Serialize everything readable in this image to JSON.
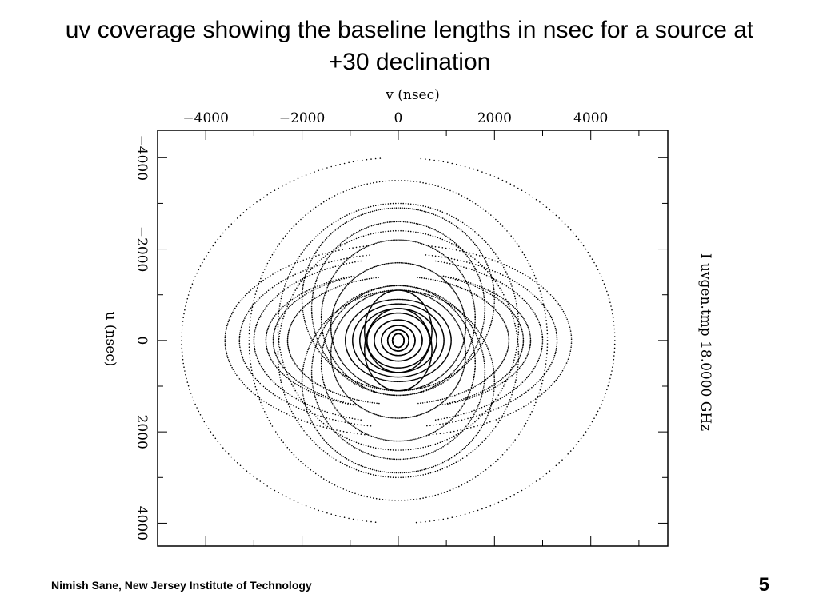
{
  "slide": {
    "title_line1": "uv coverage showing the baseline lengths in nsec for a source at",
    "title_line2": "+30 declination",
    "footer": "Nimish Sane,  New Jersey Institute of Technology",
    "page_number": "5"
  },
  "chart_data": {
    "type": "scatter",
    "xlabel": "v (nsec)",
    "ylabel": "u (nsec)",
    "side_label": "I uvgen.tmp 18.0000 GHz",
    "xlim": [
      -5000,
      5600
    ],
    "ylim": [
      -4600,
      4500
    ],
    "x_ticks": [
      -4000,
      -2000,
      0,
      2000,
      4000
    ],
    "x_tick_labels": [
      "−4000",
      "−2000",
      "0",
      "2000",
      "4000"
    ],
    "y_ticks": [
      -4000,
      -2000,
      0,
      2000,
      4000
    ],
    "y_tick_labels": [
      "−4000",
      "−2000",
      "0",
      "2000",
      "4000"
    ],
    "grid": false,
    "marker_color": "#000000",
    "note": "Each track is an elliptical arc centered at (0, ±center_y) with semi-axes a (along v) and b (along u); arcs span angle range start_deg..end_deg with a point every step_deg.",
    "tracks": [
      {
        "a": 4500,
        "b": 4000,
        "center_y": 0,
        "start_deg": 96,
        "end_deg": 266
      },
      {
        "a": 4500,
        "b": 4000,
        "center_y": 0,
        "start_deg": 276,
        "end_deg": 446
      },
      {
        "a": 3100,
        "b": 3500,
        "center_y": 0,
        "start_deg": 0,
        "end_deg": 360
      },
      {
        "a": 2500,
        "b": 2700,
        "center_y": 300,
        "start_deg": 0,
        "end_deg": 360
      },
      {
        "a": 2500,
        "b": 2700,
        "center_y": -300,
        "start_deg": 0,
        "end_deg": 360
      },
      {
        "a": 3600,
        "b": 2100,
        "center_y": 0,
        "start_deg": 100,
        "end_deg": 260
      },
      {
        "a": 3600,
        "b": 2100,
        "center_y": 0,
        "start_deg": 280,
        "end_deg": 440
      },
      {
        "a": 3300,
        "b": 1900,
        "center_y": 0,
        "start_deg": 100,
        "end_deg": 260
      },
      {
        "a": 3300,
        "b": 1900,
        "center_y": 0,
        "start_deg": 280,
        "end_deg": 440
      },
      {
        "a": 3000,
        "b": 1800,
        "center_y": 0,
        "start_deg": 105,
        "end_deg": 255
      },
      {
        "a": 3000,
        "b": 1800,
        "center_y": 0,
        "start_deg": 285,
        "end_deg": 435
      },
      {
        "a": 2750,
        "b": 1500,
        "center_y": 0,
        "start_deg": 110,
        "end_deg": 250
      },
      {
        "a": 2750,
        "b": 1500,
        "center_y": 0,
        "start_deg": 290,
        "end_deg": 430
      },
      {
        "a": 2600,
        "b": 1500,
        "center_y": 0,
        "start_deg": 110,
        "end_deg": 250
      },
      {
        "a": 2600,
        "b": 1500,
        "center_y": 0,
        "start_deg": 290,
        "end_deg": 430
      },
      {
        "a": 2300,
        "b": 1400,
        "center_y": 0,
        "start_deg": 100,
        "end_deg": 260
      },
      {
        "a": 2300,
        "b": 1400,
        "center_y": 0,
        "start_deg": 280,
        "end_deg": 440
      },
      {
        "a": 2000,
        "b": 2000,
        "center_y": 900,
        "start_deg": 0,
        "end_deg": 360
      },
      {
        "a": 2000,
        "b": 2000,
        "center_y": -900,
        "start_deg": 0,
        "end_deg": 360
      },
      {
        "a": 1800,
        "b": 1900,
        "center_y": 700,
        "start_deg": 0,
        "end_deg": 360
      },
      {
        "a": 1800,
        "b": 1900,
        "center_y": -700,
        "start_deg": 0,
        "end_deg": 360
      },
      {
        "a": 1600,
        "b": 1700,
        "center_y": 500,
        "start_deg": 0,
        "end_deg": 360
      },
      {
        "a": 1600,
        "b": 1700,
        "center_y": -500,
        "start_deg": 0,
        "end_deg": 360
      },
      {
        "a": 1400,
        "b": 1400,
        "center_y": 300,
        "start_deg": 0,
        "end_deg": 360
      },
      {
        "a": 1400,
        "b": 1400,
        "center_y": -300,
        "start_deg": 0,
        "end_deg": 360
      },
      {
        "a": 1100,
        "b": 900,
        "center_y": 0,
        "start_deg": 0,
        "end_deg": 360
      },
      {
        "a": 950,
        "b": 800,
        "center_y": 0,
        "start_deg": 0,
        "end_deg": 360
      },
      {
        "a": 800,
        "b": 700,
        "center_y": 0,
        "start_deg": 0,
        "end_deg": 360
      },
      {
        "a": 650,
        "b": 600,
        "center_y": 0,
        "start_deg": 0,
        "end_deg": 360
      },
      {
        "a": 500,
        "b": 450,
        "center_y": 0,
        "start_deg": 0,
        "end_deg": 360
      },
      {
        "a": 350,
        "b": 330,
        "center_y": 0,
        "start_deg": 0,
        "end_deg": 360
      },
      {
        "a": 220,
        "b": 230,
        "center_y": 0,
        "start_deg": 0,
        "end_deg": 360
      },
      {
        "a": 120,
        "b": 150,
        "center_y": 0,
        "start_deg": 0,
        "end_deg": 360
      },
      {
        "a": 700,
        "b": 900,
        "center_y": 200,
        "start_deg": 0,
        "end_deg": 360
      },
      {
        "a": 700,
        "b": 900,
        "center_y": -200,
        "start_deg": 0,
        "end_deg": 360
      }
    ],
    "step_deg": 1.2
  }
}
